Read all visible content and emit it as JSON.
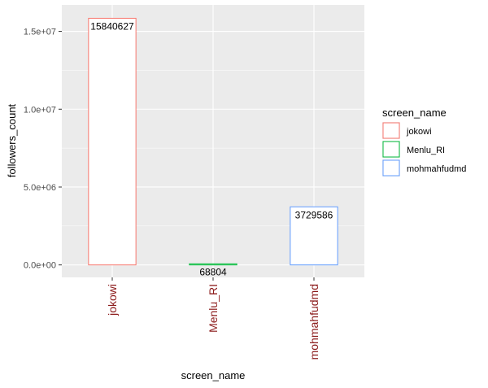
{
  "chart_data": {
    "type": "bar",
    "categories": [
      "jokowi",
      "Menlu_RI",
      "mohmahfudmd"
    ],
    "values": [
      15840627,
      68804,
      3729586
    ],
    "data_labels": [
      "15840627",
      "68804",
      "3729586"
    ],
    "xlabel": "screen_name",
    "ylabel": "followers_count",
    "ylim": [
      -800000,
      16700000
    ],
    "yticks": [
      0,
      5000000,
      10000000,
      15000000
    ],
    "ytick_labels": [
      "0.0e+00",
      "5.0e+06",
      "1.0e+07",
      "1.5e+07"
    ],
    "legend": {
      "title": "screen_name",
      "position": "right",
      "entries": [
        "jokowi",
        "Menlu_RI",
        "mohmahfudmd"
      ]
    },
    "colors": [
      "#f8766d",
      "#00ba38",
      "#619cff"
    ],
    "panel_background": "#ebebeb",
    "grid": true
  }
}
